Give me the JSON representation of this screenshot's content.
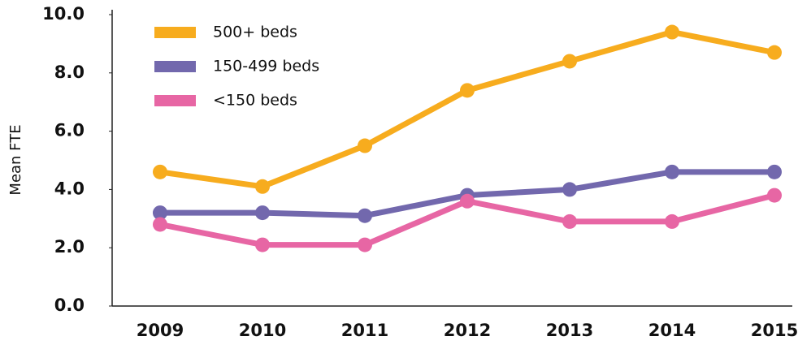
{
  "chart_data": {
    "type": "line",
    "ylabel": "Mean FTE",
    "categories": [
      "2009",
      "2010",
      "2011",
      "2012",
      "2013",
      "2014",
      "2015"
    ],
    "series": [
      {
        "name": "500+ beds",
        "color": "#f7ac1e",
        "values": [
          4.6,
          4.1,
          5.5,
          7.4,
          8.4,
          9.4,
          8.7
        ]
      },
      {
        "name": "150-499 beds",
        "color": "#7268ad",
        "values": [
          3.2,
          3.2,
          3.1,
          3.8,
          4.0,
          4.6,
          4.6
        ]
      },
      {
        "name": "<150 beds",
        "color": "#e766a4",
        "values": [
          2.8,
          2.1,
          2.1,
          3.6,
          2.9,
          2.9,
          3.8
        ]
      }
    ],
    "ylim": [
      0,
      10
    ],
    "yticks": [
      {
        "value": 0,
        "label": "0.0"
      },
      {
        "value": 2,
        "label": "2.0"
      },
      {
        "value": 4,
        "label": "4.0"
      },
      {
        "value": 6,
        "label": "6.0"
      },
      {
        "value": 8,
        "label": "8.0"
      },
      {
        "value": 10,
        "label": "10.0"
      }
    ],
    "legend": "upper left"
  }
}
